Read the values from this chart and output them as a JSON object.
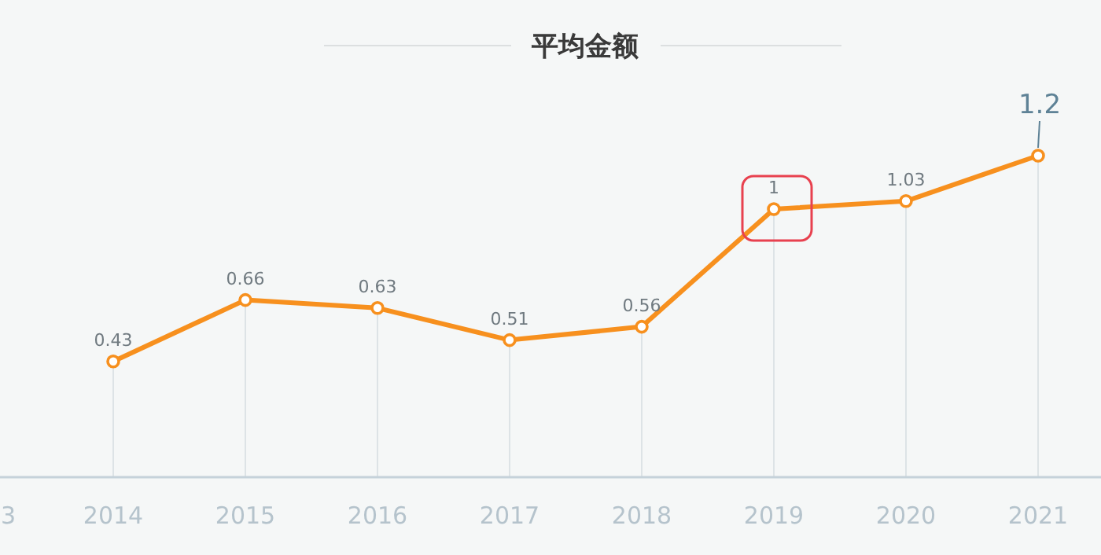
{
  "chart_data": {
    "type": "line",
    "title": "平均金额",
    "categories": [
      "3",
      "2014",
      "2015",
      "2016",
      "2017",
      "2018",
      "2019",
      "2020",
      "2021",
      null
    ],
    "series": [
      {
        "color": "#f7901e",
        "values": [
          null,
          0.43,
          0.66,
          0.63,
          0.51,
          0.56,
          1,
          1.03,
          1.2,
          null
        ]
      }
    ],
    "data_labels": true,
    "tick_labels": "x",
    "grid": "x",
    "marker": "circle"
  }
}
